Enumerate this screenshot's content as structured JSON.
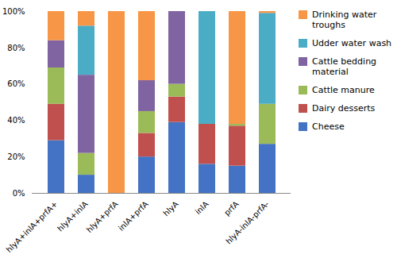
{
  "chart_data": {
    "type": "bar",
    "stacked": true,
    "categories": [
      "hlyA+inlA+prfA+",
      "hlyA+inlA",
      "hlyA+prfA",
      "inlA+prfA",
      "hlyA",
      "inlA",
      "prfA",
      "hlyA-inlA-prfA-"
    ],
    "series": [
      {
        "name": "Cheese",
        "color": "#4472C4",
        "values": [
          29,
          10,
          0,
          20,
          39,
          16,
          15,
          27
        ]
      },
      {
        "name": "Dairy desserts",
        "color": "#C0504D",
        "values": [
          20,
          0,
          0,
          13,
          14,
          22,
          22,
          0
        ]
      },
      {
        "name": "Cattle manure",
        "color": "#9BBB59",
        "values": [
          20,
          12,
          0,
          12,
          7,
          0,
          1,
          22
        ]
      },
      {
        "name": "Cattle bedding material",
        "color": "#8064A2",
        "values": [
          15,
          43,
          0,
          17,
          40,
          0,
          0,
          0
        ]
      },
      {
        "name": "Udder water wash",
        "color": "#4BACC6",
        "values": [
          0,
          27,
          0,
          0,
          0,
          62,
          0,
          50
        ]
      },
      {
        "name": "Drinking water troughs",
        "color": "#F79646",
        "values": [
          16,
          8,
          100,
          38,
          0,
          0,
          62,
          1
        ]
      }
    ],
    "ylim": [
      0,
      100
    ],
    "yticks": [
      {
        "value": 0,
        "label": "0%"
      },
      {
        "value": 20,
        "label": "20%"
      },
      {
        "value": 40,
        "label": "40%"
      },
      {
        "value": 60,
        "label": "60%"
      },
      {
        "value": 80,
        "label": "80%"
      },
      {
        "value": 100,
        "label": "100%"
      }
    ],
    "grid": false,
    "legend": "right"
  }
}
